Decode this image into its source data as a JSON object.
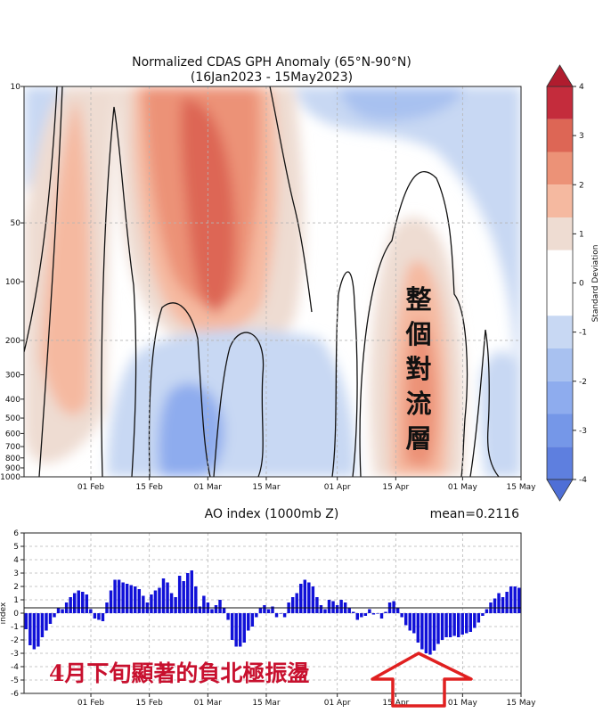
{
  "top_chart": {
    "title": "Normalized CDAS GPH Anomaly (65°N-90°N)",
    "subtitle": "(16Jan2023 - 15May2023)",
    "y_ticks": [
      "10",
      "50",
      "100",
      "200",
      "300",
      "400",
      "500",
      "600",
      "700",
      "800",
      "900",
      "1000"
    ],
    "x_ticks": [
      "01 Feb",
      "15 Feb",
      "01 Mar",
      "15 Mar",
      "01 Apr",
      "15 Apr",
      "01 May",
      "15 May"
    ],
    "annotation": [
      "整",
      "個",
      "對",
      "流",
      "層"
    ],
    "colorbar": {
      "label": "Standard Deviation",
      "ticks": [
        "4",
        "3",
        "2",
        "1",
        "0",
        "-1",
        "-2",
        "-3",
        "-4"
      ],
      "colors": [
        "#c42c3c",
        "#dd6655",
        "#ec9277",
        "#f5b9a0",
        "#eedcd2",
        "#ffffff",
        "#ffffff",
        "#c8d8f3",
        "#a8c1f0",
        "#8eacee",
        "#7597e8",
        "#5e7fdf"
      ]
    }
  },
  "bottom_chart": {
    "title": "AO index (1000mb Z)",
    "mean_label": "mean=0.2116",
    "annotation": "4月下旬顯著的負北極振盪"
  },
  "chart_data": [
    {
      "type": "heatmap",
      "title": "Normalized CDAS GPH Anomaly (65°N-90°N)",
      "subtitle": "(16Jan2023 - 15May2023)",
      "x_range": [
        "2023-01-16",
        "2023-05-15"
      ],
      "y_axis": "pressure (hPa), log scale, inverted",
      "ylim": [
        1000,
        10
      ],
      "y_ticks": [
        10,
        50,
        100,
        200,
        300,
        400,
        500,
        600,
        700,
        800,
        900,
        1000
      ],
      "colorbar_range": [
        -4,
        4
      ],
      "colorbar_label": "Standard Deviation",
      "features": [
        {
          "dates": [
            "2023-01-16",
            "2023-01-31"
          ],
          "levels": [
            10,
            1000
          ],
          "peak": 1.6
        },
        {
          "dates": [
            "2023-02-12",
            "2023-03-20"
          ],
          "levels": [
            10,
            300
          ],
          "peak": 3.4
        },
        {
          "dates": [
            "2023-02-10",
            "2023-03-25"
          ],
          "levels": [
            300,
            1000
          ],
          "peak": -1.8
        },
        {
          "dates": [
            "2023-03-25",
            "2023-05-15"
          ],
          "levels": [
            10,
            100
          ],
          "peak": -1.4
        },
        {
          "dates": [
            "2023-04-10",
            "2023-05-08"
          ],
          "levels": [
            70,
            1000
          ],
          "peak": 2.1
        }
      ],
      "grid": true
    },
    {
      "type": "bar",
      "title": "AO index (1000mb Z)",
      "annotation": "mean=0.2116",
      "ylabel": "index",
      "ylim": [
        -6,
        6
      ],
      "x_range": [
        "2023-01-16",
        "2023-05-15"
      ],
      "x_ticks": [
        "01 Feb",
        "15 Feb",
        "01 Mar",
        "15 Mar",
        "01 Apr",
        "15 Apr",
        "01 May",
        "15 May"
      ],
      "y_ticks": [
        6,
        5,
        4,
        3,
        2,
        1,
        0,
        -1,
        -2,
        -3,
        -4,
        -5,
        -6
      ],
      "grid": true,
      "values": [
        -1.2,
        -2.4,
        -2.7,
        -2.5,
        -1.8,
        -1.3,
        -0.8,
        -0.3,
        0.4,
        0.3,
        0.8,
        1.2,
        1.5,
        1.7,
        1.6,
        1.4,
        0.3,
        -0.4,
        -0.5,
        -0.6,
        0.8,
        1.7,
        2.5,
        2.5,
        2.3,
        2.2,
        2.1,
        2.0,
        1.8,
        1.3,
        0.8,
        1.4,
        1.7,
        1.9,
        2.6,
        2.3,
        1.5,
        1.2,
        2.8,
        2.4,
        3.0,
        3.2,
        2.0,
        0.5,
        1.3,
        0.8,
        0.3,
        0.6,
        1.0,
        0.4,
        -0.5,
        -2.0,
        -2.5,
        -2.5,
        -2.2,
        -1.3,
        -1.0,
        -0.3,
        0.4,
        0.6,
        0.3,
        0.5,
        -0.3,
        0.0,
        -0.3,
        0.8,
        1.2,
        1.5,
        2.2,
        2.5,
        2.3,
        2.0,
        1.2,
        0.6,
        0.3,
        1.0,
        0.9,
        0.6,
        1.0,
        0.8,
        0.4,
        0.1,
        -0.5,
        -0.3,
        -0.2,
        0.3,
        -0.1,
        0.0,
        -0.4,
        0.1,
        0.8,
        0.9,
        0.4,
        -0.3,
        -0.9,
        -1.3,
        -1.5,
        -2.2,
        -2.7,
        -3.0,
        -3.1,
        -2.8,
        -2.3,
        -2.0,
        -1.8,
        -1.8,
        -1.7,
        -1.8,
        -1.6,
        -1.5,
        -1.4,
        -1.1,
        -0.7,
        -0.2,
        0.3,
        0.8,
        1.1,
        1.5,
        1.2,
        1.6,
        2.0,
        2.0,
        1.9
      ]
    }
  ]
}
